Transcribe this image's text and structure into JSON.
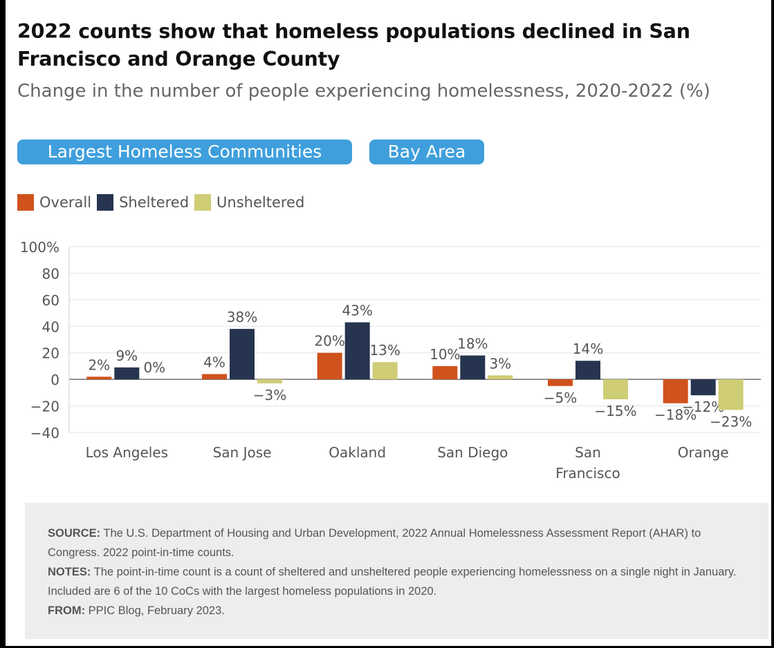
{
  "title": "2022 counts show that homeless populations declined in San Francisco and Orange County",
  "subtitle": "Change in the number of people experiencing homelessness, 2020-2022 (%)",
  "tabs": [
    {
      "label": "Largest Homeless Communities"
    },
    {
      "label": "Bay Area"
    }
  ],
  "colors": {
    "overall": "#d0521d",
    "sheltered": "#26344f",
    "unsheltered": "#cfcd76",
    "accent": "#3f9fdc"
  },
  "chart_data": {
    "type": "bar",
    "categories": [
      "Los Angeles",
      "San Jose",
      "Oakland",
      "San Diego",
      "San Francisco",
      "Orange"
    ],
    "category_lines": [
      [
        "Los Angeles"
      ],
      [
        "San Jose"
      ],
      [
        "Oakland"
      ],
      [
        "San Diego"
      ],
      [
        "San",
        "Francisco"
      ],
      [
        "Orange"
      ]
    ],
    "series": [
      {
        "name": "Overall",
        "values": [
          2,
          4,
          20,
          10,
          -5,
          -18
        ],
        "labels": [
          "2%",
          "4%",
          "20%",
          "10%",
          "−5%",
          "−18%"
        ]
      },
      {
        "name": "Sheltered",
        "values": [
          9,
          38,
          43,
          18,
          14,
          -12
        ],
        "labels": [
          "9%",
          "38%",
          "43%",
          "18%",
          "14%",
          "−12%"
        ]
      },
      {
        "name": "Unsheltered",
        "values": [
          0,
          -3,
          13,
          3,
          -15,
          -23
        ],
        "labels": [
          "0%",
          "−3%",
          "13%",
          "3%",
          "−15%",
          "−23%"
        ]
      }
    ],
    "yticks": [
      100,
      80,
      60,
      40,
      20,
      0,
      -20,
      -40
    ],
    "ytick_labels": [
      "100%",
      "80",
      "60",
      "40",
      "20",
      "0",
      "−20",
      "−40"
    ],
    "ylim": [
      -40,
      100
    ],
    "grid": true,
    "legend_position": "top-left"
  },
  "notes": {
    "source_label": "SOURCE:",
    "source_text": " The U.S. Department of Housing and Urban Development, 2022 Annual Homelessness Assessment Report (AHAR) to Congress. 2022 point-in-time counts.",
    "notes_label": "NOTES:",
    "notes_text": " The point-in-time count is a count of sheltered and unsheltered people experiencing homelessness on a single night in January. Included are 6 of the 10 CoCs with the largest homeless populations in 2020.",
    "from_label": "FROM:",
    "from_text": " PPIC Blog, February 2023."
  }
}
